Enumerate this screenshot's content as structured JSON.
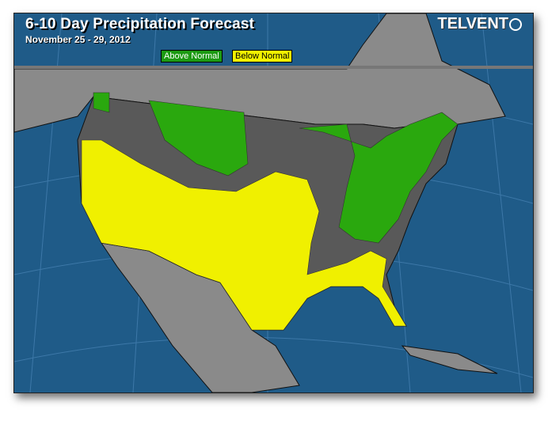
{
  "header": {
    "title": "6-10 Day Precipitation Forecast",
    "subtitle": "November 25 - 29, 2012",
    "logo": "TELVENT"
  },
  "legend": [
    {
      "label": "Above Normal",
      "color": "#1c9a12"
    },
    {
      "label": "Below Normal",
      "color": "#f2f200"
    }
  ],
  "colors": {
    "ocean": "#1f5b88",
    "land": "#8a8a8a",
    "near_normal": "#595959",
    "above": "#2aa80e",
    "below": "#f0f000"
  }
}
